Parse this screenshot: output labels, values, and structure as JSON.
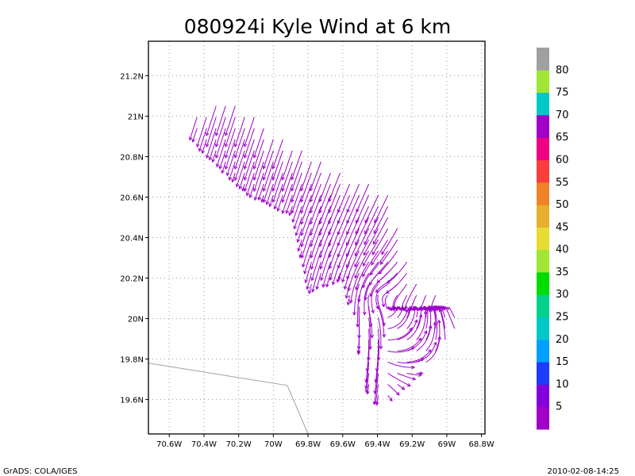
{
  "chart_data": {
    "type": "streamline",
    "title": "080924i Kyle Wind at 6 km",
    "xlabel": "",
    "ylabel": "",
    "xlim": [
      -70.72,
      -68.78
    ],
    "ylim": [
      19.43,
      21.37
    ],
    "x_ticks": [
      {
        "value": -70.6,
        "label": "70.6W"
      },
      {
        "value": -70.4,
        "label": "70.4W"
      },
      {
        "value": -70.2,
        "label": "70.2W"
      },
      {
        "value": -70.0,
        "label": "70W"
      },
      {
        "value": -69.8,
        "label": "69.8W"
      },
      {
        "value": -69.6,
        "label": "69.6W"
      },
      {
        "value": -69.4,
        "label": "69.4W"
      },
      {
        "value": -69.2,
        "label": "69.2W"
      },
      {
        "value": -69.0,
        "label": "69W"
      },
      {
        "value": -68.8,
        "label": "68.8W"
      }
    ],
    "y_ticks": [
      {
        "value": 19.6,
        "label": "19.6N"
      },
      {
        "value": 19.8,
        "label": "19.8N"
      },
      {
        "value": 20.0,
        "label": "20N"
      },
      {
        "value": 20.2,
        "label": "20.2N"
      },
      {
        "value": 20.4,
        "label": "20.4N"
      },
      {
        "value": 20.6,
        "label": "20.6N"
      },
      {
        "value": 20.8,
        "label": "20.8N"
      },
      {
        "value": 21.0,
        "label": "21N"
      },
      {
        "value": 21.2,
        "label": "21.2N"
      }
    ],
    "grid": true,
    "streamline_color": "#9c00c8",
    "coastline": [
      [
        -70.72,
        19.78
      ],
      [
        -69.92,
        19.67
      ],
      [
        -69.8,
        19.43
      ]
    ],
    "coastline_color": "#a0a0a0",
    "colorbar": {
      "colors": [
        "#a000c8",
        "#8200dc",
        "#1e3cff",
        "#00a0ff",
        "#00c8c8",
        "#00d28c",
        "#00dc00",
        "#a0e632",
        "#e6dc32",
        "#e6af2d",
        "#f08228",
        "#fa3c3c",
        "#f00082",
        "#a000c8",
        "#00c8c8",
        "#a0e632",
        "#a0a0a0"
      ],
      "labels": [
        "5",
        "10",
        "15",
        "20",
        "25",
        "30",
        "35",
        "40",
        "45",
        "50",
        "55",
        "60",
        "65",
        "70",
        "75",
        "80"
      ]
    }
  },
  "footer": {
    "left": "GrADS: COLA/IGES",
    "right": "2010-02-08-14:25"
  }
}
